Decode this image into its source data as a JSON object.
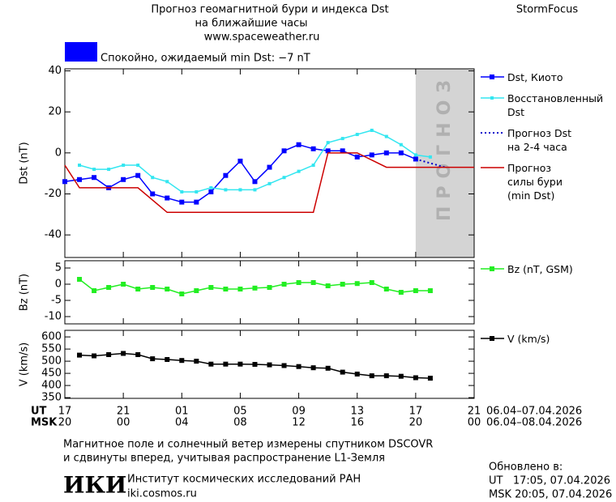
{
  "header": {
    "title": "Прогноз геомагнитной бури и индекса Dst",
    "subtitle": "на ближайшие часы",
    "url": "www.spaceweather.ru",
    "brand": "StormFocus"
  },
  "status": {
    "text": "Спокойно, ожидаемый min Dst: −7 nT",
    "color": "#0000ff"
  },
  "chart_data": [
    {
      "type": "line",
      "ylabel": "Dst (nT)",
      "xlim": [
        0,
        28
      ],
      "xticks": [
        0,
        4,
        8,
        12,
        16,
        20,
        24,
        28
      ],
      "ylim": [
        -51,
        41
      ],
      "yticks": [
        40,
        20,
        0,
        -20,
        -40
      ],
      "forecast_span": [
        24,
        28
      ],
      "forecast_label": "ПРОГНОЗ",
      "series": [
        {
          "name": "Dst, Киото",
          "color": "#0000ff",
          "marker": "square",
          "style": "solid",
          "x": [
            0,
            1,
            2,
            3,
            4,
            5,
            6,
            7,
            8,
            9,
            10,
            11,
            12,
            13,
            14,
            15,
            16,
            17,
            18,
            19,
            20,
            21,
            22,
            23,
            24
          ],
          "values": [
            -14,
            -13,
            -12,
            -17,
            -13,
            -11,
            -20,
            -22,
            -24,
            -24,
            -19,
            -11,
            -4,
            -14,
            -7,
            1,
            4,
            2,
            1,
            1,
            -2,
            -1,
            0,
            0,
            -3
          ]
        },
        {
          "name": "Восстановленный\nDst",
          "color": "#33e6f0",
          "marker": "small-square",
          "style": "solid",
          "x": [
            1,
            2,
            3,
            4,
            5,
            6,
            7,
            8,
            9,
            10,
            11,
            12,
            13,
            14,
            15,
            16,
            17,
            18,
            19,
            20,
            21,
            22,
            23,
            24,
            25
          ],
          "values": [
            -6,
            -8,
            -8,
            -6,
            -6,
            -12,
            -14,
            -19,
            -19,
            -17,
            -18,
            -18,
            -18,
            -15,
            -12,
            -9,
            -6,
            5,
            7,
            9,
            11,
            8,
            4,
            -1,
            -2
          ]
        },
        {
          "name": "Прогноз Dst\nна 2-4 часа",
          "color": "#0000cc",
          "marker": "none",
          "style": "dotted",
          "x": [
            24,
            26
          ],
          "values": [
            -3,
            -7
          ]
        },
        {
          "name": "Прогноз\nсилы бури\n(min Dst)",
          "color": "#cc0000",
          "marker": "none",
          "style": "solid",
          "x": [
            0,
            1,
            5,
            7,
            17,
            18,
            20,
            22,
            28
          ],
          "values": [
            -6,
            -17,
            -17,
            -29,
            -29,
            0,
            0,
            -7,
            -7
          ]
        }
      ]
    },
    {
      "type": "line",
      "ylabel": "Bz (nT)",
      "xlim": [
        0,
        28
      ],
      "xticks": [
        0,
        4,
        8,
        12,
        16,
        20,
        24,
        28
      ],
      "ylim": [
        -12.25,
        7.25
      ],
      "yticks": [
        5,
        0,
        -5,
        -10
      ],
      "series": [
        {
          "name": "Bz (nT, GSM)",
          "color": "#22ee22",
          "marker": "square",
          "style": "solid",
          "x": [
            1,
            2,
            3,
            4,
            5,
            6,
            7,
            8,
            9,
            10,
            11,
            12,
            13,
            14,
            15,
            16,
            17,
            18,
            19,
            20,
            21,
            22,
            23,
            24,
            25
          ],
          "values": [
            1.5,
            -2,
            -1,
            0,
            -1.5,
            -1,
            -1.5,
            -3,
            -2,
            -1,
            -1.5,
            -1.5,
            -1.2,
            -1,
            0,
            0.5,
            0.5,
            -0.5,
            0,
            0.2,
            0.5,
            -1.5,
            -2.5,
            -2,
            -2
          ]
        }
      ]
    },
    {
      "type": "line",
      "ylabel": "V (km/s)",
      "xlim": [
        0,
        28
      ],
      "xticks": [
        {
          "value": 0,
          "label": "17"
        },
        {
          "value": 4,
          "label": "21"
        },
        {
          "value": 8,
          "label": "01"
        },
        {
          "value": 12,
          "label": "05"
        },
        {
          "value": 16,
          "label": "09"
        },
        {
          "value": 20,
          "label": "13"
        },
        {
          "value": 24,
          "label": "17"
        },
        {
          "value": 28,
          "label": "21"
        }
      ],
      "x2ticklabels": [
        "20",
        "00",
        "04",
        "08",
        "12",
        "16",
        "20",
        "00"
      ],
      "xrow_labels": [
        "UT",
        "MSK"
      ],
      "xrange_labels": [
        "06.04–07.04.2026",
        "06.04–08.04.2026"
      ],
      "ylim": [
        347,
        627
      ],
      "yticks": [
        600,
        550,
        500,
        450,
        400,
        350
      ],
      "series": [
        {
          "name": "V (km/s)",
          "color": "#000000",
          "marker": "square",
          "style": "solid",
          "x": [
            1,
            2,
            3,
            4,
            5,
            6,
            7,
            8,
            9,
            10,
            11,
            12,
            13,
            14,
            15,
            16,
            17,
            18,
            19,
            20,
            21,
            22,
            23,
            24,
            25
          ],
          "values": [
            525,
            522,
            527,
            532,
            527,
            510,
            507,
            503,
            500,
            488,
            488,
            488,
            487,
            485,
            482,
            478,
            473,
            471,
            455,
            447,
            440,
            440,
            438,
            432,
            430
          ]
        }
      ]
    }
  ],
  "footer": {
    "note": [
      "Магнитное поле и солнечный ветер измерены спутником DSCOVR",
      "и сдвинуты вперед, учитывая распространение L1-Земля"
    ],
    "logo": "ИКИ",
    "institute": "Институт космических исследований РАН",
    "site": "iki.cosmos.ru",
    "updated_title": "Обновлено в:",
    "updated": [
      "UT   17:05, 07.04.2026",
      "MSK 20:05, 07.04.2026"
    ]
  }
}
